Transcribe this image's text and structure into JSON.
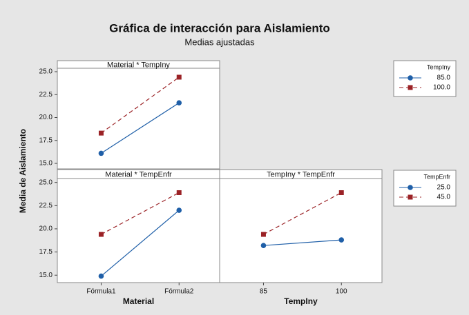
{
  "figure": {
    "title": "Gráfica de interacción para Aislamiento",
    "subtitle": "Medias ajustadas",
    "ylabel": "Media de Aislamiento"
  },
  "chart_data": [
    {
      "type": "line",
      "title": "Material * TempIny",
      "legend_title": "TempIny",
      "ylim": [
        14.4,
        25.15
      ],
      "yticks": [
        {
          "value": 15,
          "label": "15.0"
        },
        {
          "value": 17.5,
          "label": "17.5"
        },
        {
          "value": 20,
          "label": "20.0"
        },
        {
          "value": 22.5,
          "label": "22.5"
        },
        {
          "value": 25,
          "label": "25.0"
        }
      ],
      "series": [
        {
          "name": "85.0",
          "color": "#1f5fa8",
          "values": [
            16.1,
            21.6
          ]
        },
        {
          "name": "100.0",
          "color": "#9b2226",
          "values": [
            18.3,
            24.4
          ]
        }
      ]
    },
    {
      "type": "line",
      "title": "Material * TempEnfr",
      "legend_title": "TempEnfr",
      "xlabel": "Material",
      "categories": [
        "Fórmula1",
        "Fórmula2"
      ],
      "ylim": [
        14.2,
        25.2
      ],
      "yticks": [
        {
          "value": 15,
          "label": "15.0"
        },
        {
          "value": 17.5,
          "label": "17.5"
        },
        {
          "value": 20,
          "label": "20.0"
        },
        {
          "value": 22.5,
          "label": "22.5"
        },
        {
          "value": 25,
          "label": "25.0"
        }
      ],
      "series": [
        {
          "name": "25.0",
          "color": "#1f5fa8",
          "values": [
            14.9,
            22.0
          ]
        },
        {
          "name": "45.0",
          "color": "#9b2226",
          "values": [
            19.4,
            23.9
          ]
        }
      ]
    },
    {
      "type": "line",
      "title": "TempIny * TempEnfr",
      "xlabel": "TempIny",
      "categories": [
        "85",
        "100"
      ],
      "ylim": [
        14.2,
        25.2
      ],
      "series": [
        {
          "color": "#1f5fa8",
          "values": [
            18.2,
            18.8
          ]
        },
        {
          "color": "#9b2226",
          "values": [
            19.4,
            23.9
          ]
        }
      ]
    }
  ]
}
